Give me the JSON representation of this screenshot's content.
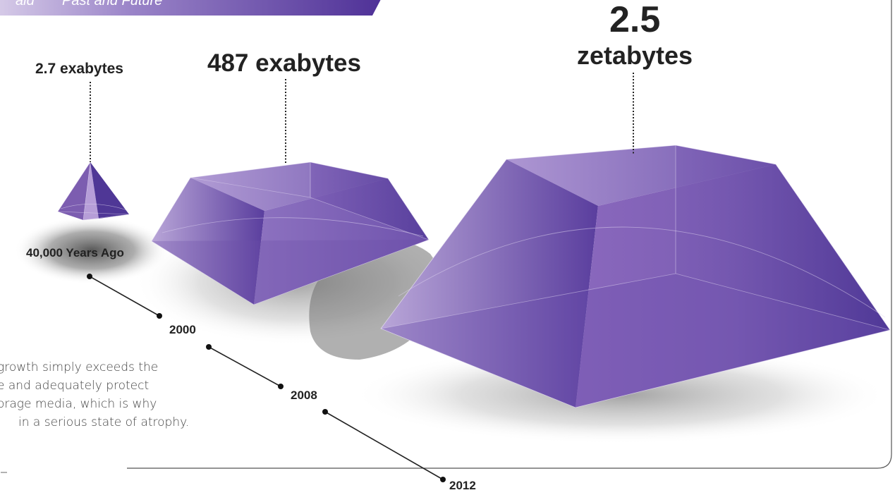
{
  "header": {
    "left_text": "ald",
    "right_text": "Past and Future"
  },
  "volumes": [
    {
      "amount": "2.7 exabytes"
    },
    {
      "amount": "487 exabytes"
    },
    {
      "amount_number": "2.5",
      "amount_unit": "zetabytes"
    }
  ],
  "timeline": [
    {
      "label": "40,000 Years Ago"
    },
    {
      "label": "2000"
    },
    {
      "label": "2008"
    },
    {
      "label": "2012"
    }
  ],
  "body_text": [
    "growth simply exceeds the",
    "e and adequately protect",
    "orage media, which is why",
    "in a serious state of atrophy."
  ],
  "colors": {
    "purple_dark": "#4f3796",
    "purple_mid": "#7c5db0",
    "purple_light": "#b7a2d6",
    "header_band": "#5a3ea0"
  }
}
